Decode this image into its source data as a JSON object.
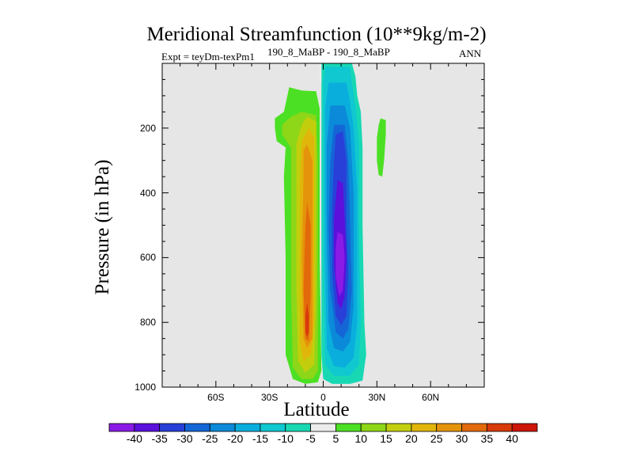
{
  "chart_data": {
    "type": "contour",
    "title": "Meridional Streamfunction (10**9kg/m-2)",
    "left_string": "Expt = teyDm-texPm1",
    "center_string": "190_8_MaBP - 190_8_MaBP",
    "right_string": "ANN",
    "xlabel": "Latitude",
    "ylabel": "Pressure (in hPa)",
    "x_range": [
      -90,
      90
    ],
    "y_range": [
      1000,
      0
    ],
    "x_ticks": [
      "60S",
      "30S",
      "0",
      "30N",
      "60N"
    ],
    "y_ticks": [
      "200",
      "400",
      "600",
      "800",
      "1000"
    ],
    "colorbar": {
      "labels": [
        "-40",
        "-35",
        "-30",
        "-25",
        "-20",
        "-15",
        "-10",
        "-5",
        "5",
        "10",
        "15",
        "20",
        "25",
        "30",
        "35",
        "40"
      ],
      "colors": [
        "#8a1be6",
        "#5b10dc",
        "#2840d8",
        "#1466d6",
        "#0a8ad8",
        "#0aaedc",
        "#10c8d0",
        "#18d8b4",
        "#ececec",
        "#4ce024",
        "#8ed618",
        "#c2ce0c",
        "#e0b60a",
        "#e4940a",
        "#e26a0a",
        "#d83a0a",
        "#cc160a"
      ]
    },
    "features": [
      {
        "name": "southern-hemisphere-positive-cell",
        "sign": "positive",
        "lat_range": [
          -25,
          -2
        ],
        "pressure_top": 70,
        "peak_value": 30,
        "peak_lat": -8,
        "peak_pressure": 800
      },
      {
        "name": "northern-hemisphere-negative-cell",
        "sign": "negative",
        "lat_range": [
          -2,
          25
        ],
        "pressure_top": 0,
        "peak_value": -40,
        "peak_lat": 10,
        "peak_pressure": 600
      },
      {
        "name": "northern-small-positive-patch",
        "sign": "positive",
        "lat_range": [
          30,
          35
        ],
        "pressure_top": 180,
        "peak_value": 5,
        "peak_lat": 32,
        "peak_pressure": 260
      }
    ]
  }
}
